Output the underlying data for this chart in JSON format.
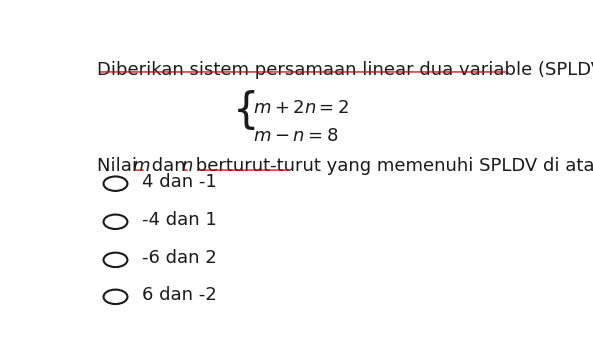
{
  "background_color": "#ffffff",
  "title_line": "Diberikan sistem persamaan linear dua variable (SPLDV) berikut:",
  "options": [
    "4 dan -1",
    "-4 dan 1",
    "-6 dan 2",
    "6 dan -2"
  ],
  "font_size_main": 13,
  "text_color": "#1a1a1a",
  "underline_color": "#cc0000",
  "figsize": [
    5.93,
    3.61
  ],
  "dpi": 100
}
